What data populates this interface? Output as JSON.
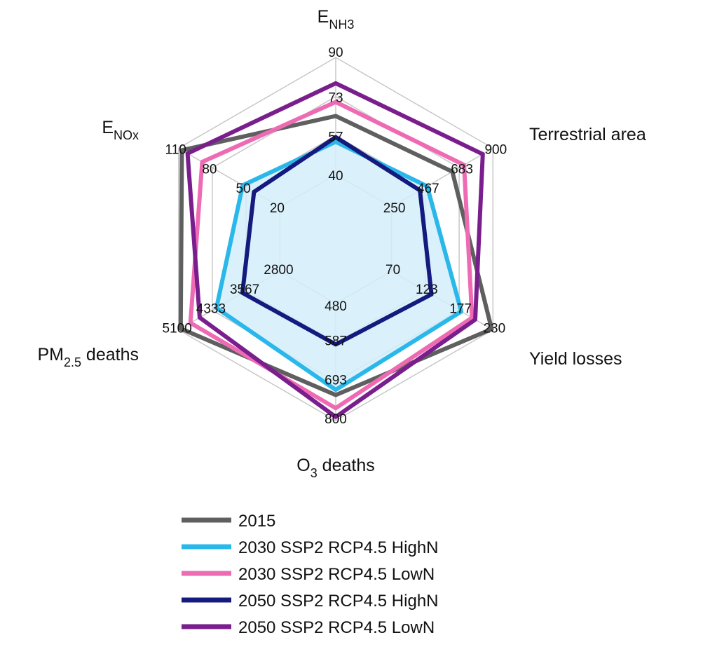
{
  "chart_data": {
    "type": "radar",
    "title": "",
    "axes": [
      {
        "key": "enh3",
        "label": "E",
        "label_sub": "NH3",
        "label_rest": "",
        "min": 40,
        "max": 90,
        "ticks": [
          "40",
          "57",
          "73",
          "90"
        ]
      },
      {
        "key": "terrestrial",
        "label": "Terrestrial area",
        "label_sub": "",
        "label_rest": "",
        "min": 250,
        "max": 900,
        "ticks": [
          "250",
          "467",
          "683",
          "900"
        ]
      },
      {
        "key": "yield",
        "label": "Yield losses",
        "label_sub": "",
        "label_rest": "",
        "min": 70,
        "max": 230,
        "ticks": [
          "70",
          "123",
          "177",
          "230"
        ]
      },
      {
        "key": "o3",
        "label": "O",
        "label_sub": "3",
        "label_rest": " deaths",
        "min": 480,
        "max": 800,
        "ticks": [
          "480",
          "587",
          "693",
          "800"
        ]
      },
      {
        "key": "pm25",
        "label": "PM",
        "label_sub": "2.5",
        "label_rest": " deaths",
        "min": 2800,
        "max": 5100,
        "ticks": [
          "2800",
          "3567",
          "4333",
          "5100"
        ]
      },
      {
        "key": "enox",
        "label": "E",
        "label_sub": "NOx",
        "label_rest": "",
        "min": 20,
        "max": 110,
        "ticks": [
          "20",
          "50",
          "80",
          "110"
        ]
      }
    ],
    "series": [
      {
        "name": "2015",
        "color": "#5f5f5f",
        "fill": false,
        "values": {
          "enh3": 65,
          "terrestrial": 640,
          "yield": 228,
          "o3": 730,
          "pm25": 5050,
          "enox": 107
        }
      },
      {
        "name": "2030 SSP2 RCP4.5 HighN",
        "color": "#2ab7ea",
        "fill": true,
        "values": {
          "enh3": 54,
          "terrestrial": 478,
          "yield": 180,
          "o3": 716,
          "pm25": 4240,
          "enox": 53
        }
      },
      {
        "name": "2030 SSP2 RCP4.5 LowN",
        "color": "#ee6bb4",
        "fill": false,
        "values": {
          "enh3": 71,
          "terrestrial": 715,
          "yield": 197,
          "o3": 766,
          "pm25": 4830,
          "enox": 89
        }
      },
      {
        "name": "2050 SSP2 RCP4.5 HighN",
        "color": "#141a7e",
        "fill": false,
        "values": {
          "enh3": 56,
          "terrestrial": 432,
          "yield": 133,
          "o3": 592,
          "pm25": 3650,
          "enox": 43
        }
      },
      {
        "name": "2050 SSP2 RCP4.5 LowN",
        "color": "#7a1e8e",
        "fill": false,
        "values": {
          "enh3": 79,
          "terrestrial": 835,
          "yield": 202,
          "o3": 790,
          "pm25": 4620,
          "enox": 102
        }
      }
    ],
    "grid": true,
    "legend_position": "bottom"
  }
}
